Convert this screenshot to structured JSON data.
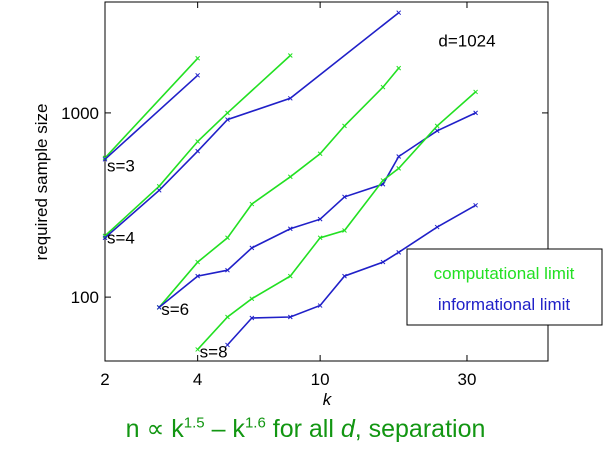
{
  "chart_data": {
    "type": "line",
    "xlabel": "k",
    "ylabel": "required sample size",
    "xscale": "log",
    "yscale": "log",
    "xlim": [
      2,
      55
    ],
    "ylim": [
      45,
      4000
    ],
    "xticks": [
      {
        "value": 2,
        "label": "2"
      },
      {
        "value": 4,
        "label": "4"
      },
      {
        "value": 10,
        "label": "10"
      },
      {
        "value": 30,
        "label": "30"
      }
    ],
    "yticks": [
      {
        "value": 100,
        "label": "100"
      },
      {
        "value": 1000,
        "label": "1000"
      }
    ],
    "annotations": [
      {
        "text": "d=1024",
        "x": 30,
        "y": 2300
      },
      {
        "text": "s=3",
        "x": 2,
        "y": 480
      },
      {
        "text": "s=4",
        "x": 2,
        "y": 195
      },
      {
        "text": "s=6",
        "x": 3,
        "y": 80
      },
      {
        "text": "s=8",
        "x": 4,
        "y": 47
      }
    ],
    "legend": {
      "position": "right",
      "entries": [
        {
          "label": "computational limit",
          "color": "#22e022"
        },
        {
          "label": "informational limit",
          "color": "#2020c8"
        }
      ]
    },
    "colors": {
      "computational": "#22e022",
      "informational": "#2020c8",
      "caption": "#129612"
    },
    "series": [
      {
        "group": "computational",
        "x": [
          2,
          4
        ],
        "y": [
          570,
          1980
        ]
      },
      {
        "group": "informational",
        "x": [
          2,
          4
        ],
        "y": [
          560,
          1600
        ]
      },
      {
        "group": "computational",
        "x": [
          2,
          3,
          4,
          5,
          8
        ],
        "y": [
          215,
          400,
          700,
          1000,
          2050
        ]
      },
      {
        "group": "informational",
        "x": [
          2,
          3,
          4,
          5,
          8,
          18
        ],
        "y": [
          210,
          380,
          620,
          920,
          1200,
          3500
        ]
      },
      {
        "group": "computational",
        "x": [
          3,
          4,
          5,
          6,
          8,
          10,
          12,
          16,
          18
        ],
        "y": [
          88,
          155,
          210,
          320,
          450,
          600,
          850,
          1380,
          1750
        ]
      },
      {
        "group": "informational",
        "x": [
          3,
          4,
          5,
          6,
          8,
          10,
          12,
          16,
          18,
          24,
          32
        ],
        "y": [
          88,
          130,
          140,
          185,
          235,
          265,
          350,
          410,
          580,
          800,
          1000
        ]
      },
      {
        "group": "computational",
        "x": [
          4,
          5,
          6,
          8,
          10,
          12,
          16,
          18,
          24,
          32
        ],
        "y": [
          52,
          78,
          98,
          130,
          210,
          230,
          430,
          500,
          850,
          1300
        ]
      },
      {
        "group": "informational",
        "x": [
          5,
          6,
          8,
          10,
          12,
          16,
          18,
          24,
          32
        ],
        "y": [
          55,
          77,
          78,
          90,
          130,
          155,
          175,
          240,
          315
        ]
      }
    ],
    "grid": false
  },
  "caption": {
    "part1": "n ∝ k",
    "exp1": "1.5",
    "part2": " – k",
    "exp2": "1.6",
    "part3": " for all ",
    "italic": "d",
    "part4": ", separation"
  }
}
